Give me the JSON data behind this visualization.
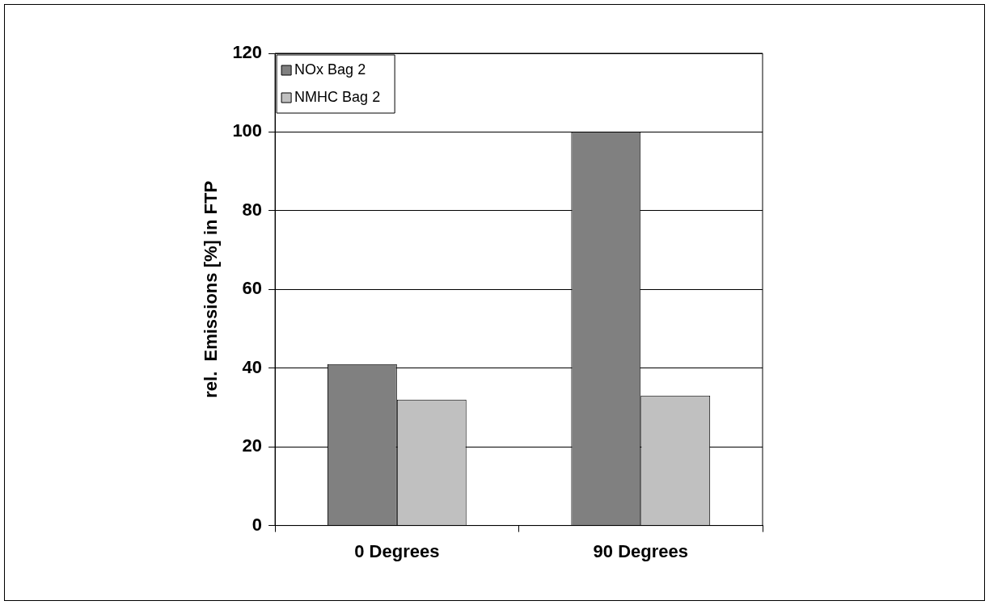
{
  "chart_data": {
    "type": "bar",
    "ylabel": "rel.  Emissions [%] in FTP",
    "categories": [
      "0 Degrees",
      "90 Degrees"
    ],
    "series": [
      {
        "name": "NOx Bag 2",
        "color": "#808080",
        "values": [
          41,
          100
        ]
      },
      {
        "name": "NMHC Bag 2",
        "color": "#c0c0c0",
        "values": [
          32,
          33
        ]
      }
    ],
    "ylim": [
      0,
      120
    ],
    "yticks": [
      0,
      20,
      40,
      60,
      80,
      100,
      120
    ],
    "grid": "y",
    "legend": "top left"
  }
}
